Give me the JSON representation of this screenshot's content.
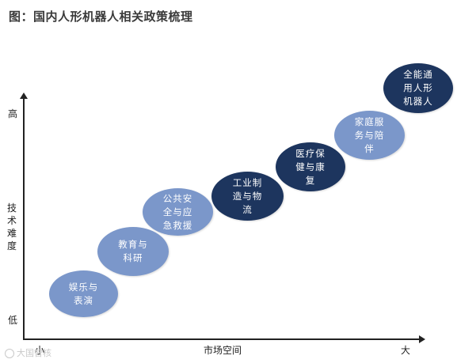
{
  "title": "图：国内人形机器人相关政策梳理",
  "y_axis": {
    "label": "技术难度",
    "high": "高",
    "low": "低"
  },
  "x_axis": {
    "label": "市场空间",
    "small": "小",
    "big": "大"
  },
  "nodes": [
    {
      "lines": [
        "娱乐与",
        "表演"
      ],
      "color": "#7b97ca"
    },
    {
      "lines": [
        "教育与",
        "科研"
      ],
      "color": "#7b97ca"
    },
    {
      "lines": [
        "公共安",
        "全与应",
        "急救援"
      ],
      "color": "#7b97ca"
    },
    {
      "lines": [
        "工业制",
        "造与物",
        "流"
      ],
      "color": "#1d355e"
    },
    {
      "lines": [
        "医疗保",
        "健与康",
        "复"
      ],
      "color": "#1d355e"
    },
    {
      "lines": [
        "家庭服",
        "务与陪",
        "伴"
      ],
      "color": "#7b97ca"
    },
    {
      "lines": [
        "全能通",
        "用人形",
        "机器人"
      ],
      "color": "#1d355e"
    }
  ],
  "watermark": "大国智核"
}
